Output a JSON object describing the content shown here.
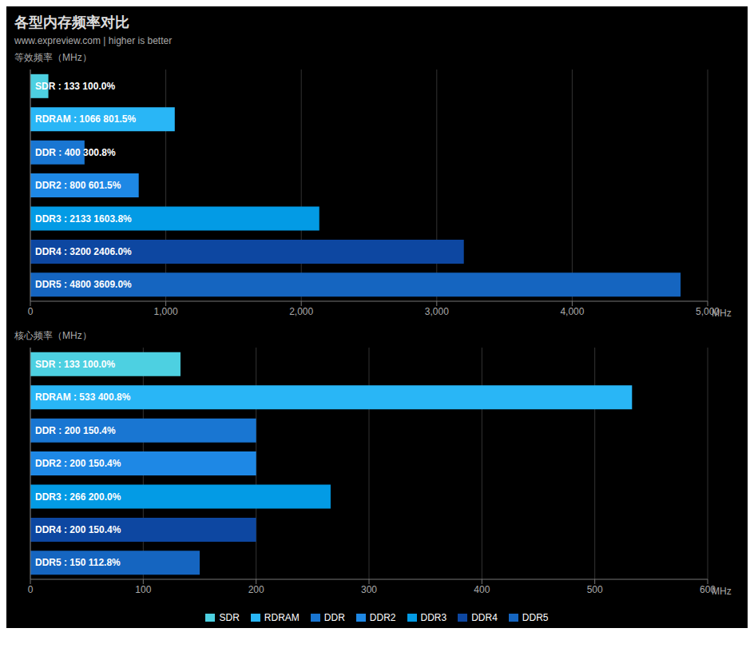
{
  "chart_data": [
    {
      "type": "bar",
      "orientation": "horizontal",
      "title": "各型内存频率对比",
      "subtitle": "www.expreview.com | higher is better",
      "ylabel": "等效频率（MHz）",
      "xlabel": "MHz",
      "categories": [
        "SDR",
        "RDRAM",
        "DDR",
        "DDR2",
        "DDR3",
        "DDR4",
        "DDR5"
      ],
      "values": [
        133,
        1066,
        400,
        800,
        2133,
        3200,
        4800
      ],
      "data_labels": true,
      "value_labels": [
        "SDR : 133  100.0%",
        "RDRAM : 1066  801.5%",
        "DDR : 400  300.8%",
        "DDR2 : 800  601.5%",
        "DDR3 : 2133  1603.8%",
        "DDR4 : 3200  2406.0%",
        "DDR5 : 4800  3609.0%"
      ],
      "colors": [
        "#4dd0e1",
        "#29b6f6",
        "#1976d2",
        "#1e88e5",
        "#039be5",
        "#0d47a1",
        "#1565c0"
      ],
      "xlim": [
        0,
        5000
      ],
      "xticks": [
        0,
        {
          "value": 1000,
          "label": "1,000"
        },
        {
          "value": 2000,
          "label": "2,000"
        },
        {
          "value": 3000,
          "label": "3,000"
        },
        {
          "value": 4000,
          "label": "4,000"
        },
        {
          "value": 5000,
          "label": "5,000"
        }
      ],
      "grid": true,
      "tick_labels": "x"
    },
    {
      "type": "bar",
      "orientation": "horizontal",
      "ylabel": "核心频率（MHz）",
      "xlabel": "MHz",
      "categories": [
        "SDR",
        "RDRAM",
        "DDR",
        "DDR2",
        "DDR3",
        "DDR4",
        "DDR5"
      ],
      "values": [
        133,
        533,
        200,
        200,
        266,
        200,
        150
      ],
      "data_labels": true,
      "value_labels": [
        "SDR : 133  100.0%",
        "RDRAM : 533  400.8%",
        "DDR : 200  150.4%",
        "DDR2 : 200  150.4%",
        "DDR3 : 266  200.0%",
        "DDR4 : 200  150.4%",
        "DDR5 : 150  112.8%"
      ],
      "colors": [
        "#4dd0e1",
        "#29b6f6",
        "#1976d2",
        "#1e88e5",
        "#039be5",
        "#0d47a1",
        "#1565c0"
      ],
      "xlim": [
        0,
        600
      ],
      "xticks": [
        0,
        100,
        200,
        300,
        400,
        500,
        600
      ],
      "grid": true,
      "tick_labels": "x",
      "legend": "bottom"
    }
  ]
}
